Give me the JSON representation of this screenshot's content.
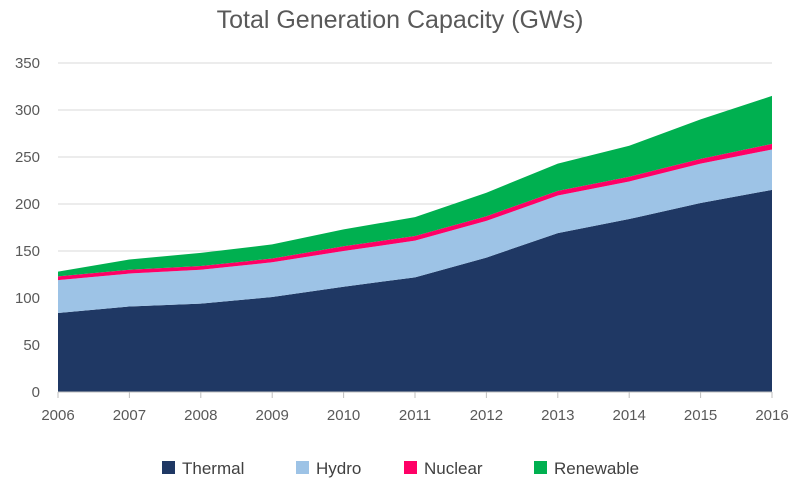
{
  "chart_data": {
    "type": "area",
    "stacked": true,
    "title": "Total Generation Capacity (GWs)",
    "x": [
      "2006",
      "2007",
      "2008",
      "2009",
      "2010",
      "2011",
      "2012",
      "2013",
      "2014",
      "2015",
      "2016"
    ],
    "ylim": [
      0,
      350
    ],
    "yticks": [
      0,
      50,
      100,
      150,
      200,
      250,
      300,
      350
    ],
    "grid": "horizontal",
    "legend_position": "bottom",
    "series": [
      {
        "name": "Thermal",
        "color": "#1f3864",
        "values": [
          84,
          91,
          94,
          101,
          112,
          122,
          143,
          169,
          184,
          201,
          215
        ]
      },
      {
        "name": "Hydro",
        "color": "#9dc3e6",
        "values": [
          35,
          35,
          36,
          37,
          38,
          39,
          39,
          40,
          40,
          42,
          43
        ]
      },
      {
        "name": "Nuclear",
        "color": "#ff0066",
        "values": [
          4,
          4,
          4,
          4,
          5,
          5,
          5,
          5,
          5,
          5,
          6
        ]
      },
      {
        "name": "Renewable",
        "color": "#00b050",
        "values": [
          5,
          11,
          14,
          15,
          18,
          20,
          25,
          29,
          33,
          42,
          51
        ]
      }
    ]
  }
}
